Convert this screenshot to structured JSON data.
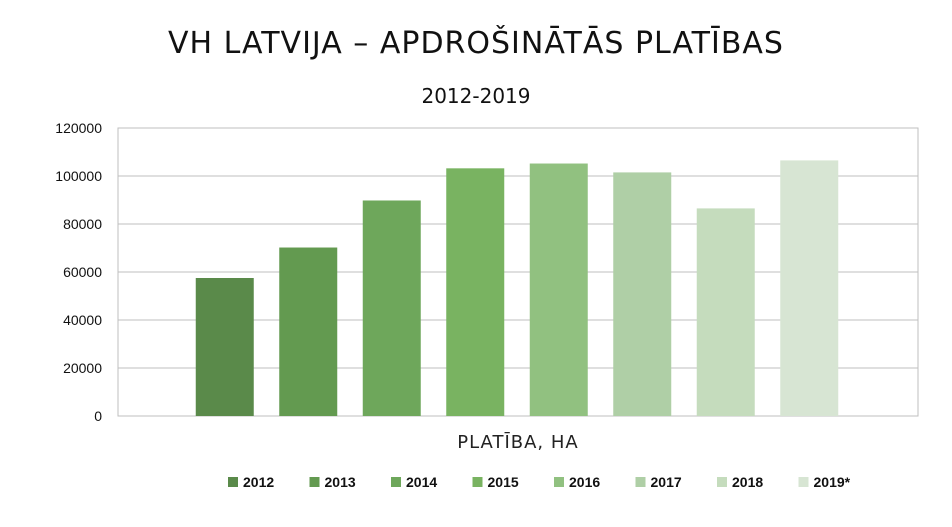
{
  "chart_data": {
    "type": "bar",
    "title": "VH LATVIJA – APDROŠINĀTĀS PLATĪBAS",
    "subtitle": "2012-2019",
    "xlabel": "PLATĪBA, HA",
    "ylabel": "",
    "categories": [
      "PLATĪBA, HA"
    ],
    "ylim": [
      0,
      120000
    ],
    "yticks": [
      0,
      20000,
      40000,
      60000,
      80000,
      100000,
      120000
    ],
    "ytick_labels": [
      "0",
      "20000",
      "40000",
      "60000",
      "80000",
      "100000",
      "120000"
    ],
    "grid": true,
    "legend_position": "bottom",
    "series": [
      {
        "name": "2012",
        "values": [
          57500
        ],
        "color": "#5a8a4a"
      },
      {
        "name": "2013",
        "values": [
          70200
        ],
        "color": "#639a50"
      },
      {
        "name": "2014",
        "values": [
          89800
        ],
        "color": "#6ea75b"
      },
      {
        "name": "2015",
        "values": [
          103200
        ],
        "color": "#79b361"
      },
      {
        "name": "2016",
        "values": [
          105200
        ],
        "color": "#91c180"
      },
      {
        "name": "2017",
        "values": [
          101500
        ],
        "color": "#afcfa6"
      },
      {
        "name": "2018",
        "values": [
          86500
        ],
        "color": "#c5dcbd"
      },
      {
        "name": "2019*",
        "values": [
          106500
        ],
        "color": "#d7e5d3"
      }
    ]
  }
}
